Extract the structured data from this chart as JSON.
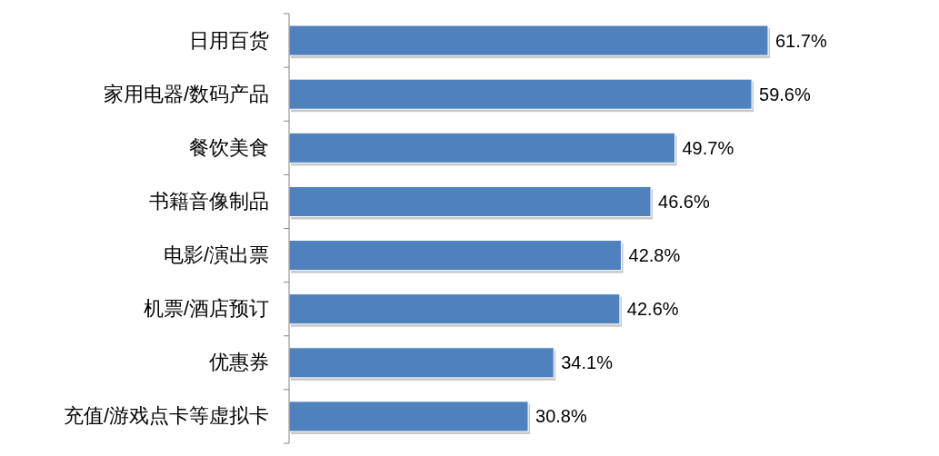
{
  "chart_data": {
    "type": "bar",
    "orientation": "horizontal",
    "categories": [
      "日用百货",
      "家用电器/数码产品",
      "餐饮美食",
      "书籍音像制品",
      "电影/演出票",
      "机票/酒店预订",
      "优惠券",
      "充值/游戏点卡等虚拟卡"
    ],
    "values": [
      61.7,
      59.6,
      49.7,
      46.6,
      42.8,
      42.6,
      34.1,
      30.8
    ],
    "value_labels": [
      "61.7%",
      "59.6%",
      "49.7%",
      "46.6%",
      "42.8%",
      "42.6%",
      "34.1%",
      "30.8%"
    ],
    "color": "#4f81bd"
  }
}
